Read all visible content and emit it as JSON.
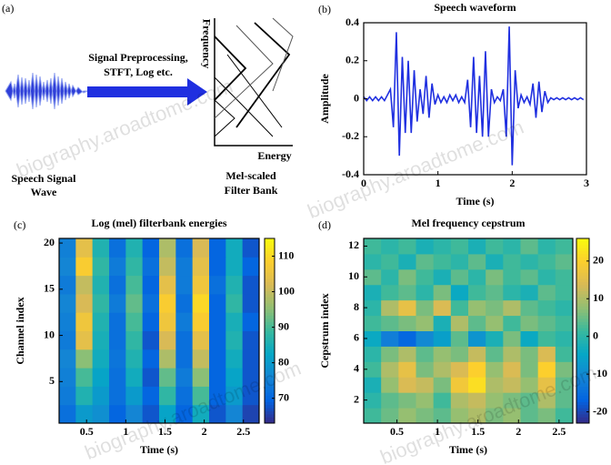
{
  "diagram": {
    "panel_label": "(a)",
    "process_line1": "Signal Preprocessing,",
    "process_line2": "STFT, Log etc.",
    "freq_label": "Frequency",
    "energy_label": "Energy",
    "wave_line1": "Speech Signal",
    "wave_line2": "Wave",
    "bank_line1": "Mel-scaled",
    "bank_line2": "Filter Bank"
  },
  "watermark": "biography.aroadtome.com",
  "chart_data": [
    {
      "type": "line",
      "panel_label": "(b)",
      "title": "Speech waveform",
      "xlabel": "Time (s)",
      "ylabel": "Amplitude",
      "color": "#1f2fe0",
      "x": [
        0,
        0.04,
        0.08,
        0.12,
        0.16,
        0.2,
        0.24,
        0.28,
        0.32,
        0.36,
        0.4,
        0.44,
        0.48,
        0.52,
        0.56,
        0.6,
        0.64,
        0.68,
        0.72,
        0.76,
        0.8,
        0.84,
        0.88,
        0.92,
        0.96,
        1.0,
        1.04,
        1.08,
        1.12,
        1.16,
        1.2,
        1.24,
        1.28,
        1.32,
        1.36,
        1.4,
        1.44,
        1.48,
        1.52,
        1.56,
        1.6,
        1.64,
        1.68,
        1.72,
        1.76,
        1.8,
        1.84,
        1.88,
        1.92,
        1.96,
        2.0,
        2.04,
        2.08,
        2.12,
        2.16,
        2.2,
        2.24,
        2.28,
        2.32,
        2.36,
        2.4,
        2.44,
        2.48,
        2.52,
        2.56,
        2.6,
        2.64,
        2.68,
        2.72,
        2.76,
        2.8,
        2.84,
        2.88,
        2.92,
        2.96
      ],
      "values": [
        0.01,
        -0.01,
        0.01,
        -0.01,
        0.01,
        -0.01,
        0.01,
        -0.01,
        0.02,
        0.05,
        -0.15,
        0.35,
        -0.3,
        0.22,
        -0.18,
        0.2,
        -0.18,
        0.15,
        -0.12,
        0.05,
        -0.08,
        0.12,
        -0.1,
        0.08,
        -0.03,
        0.02,
        -0.02,
        0.01,
        -0.02,
        0.02,
        -0.01,
        0.02,
        -0.02,
        0.01,
        -0.02,
        0.1,
        -0.15,
        0.22,
        -0.18,
        0.12,
        -0.2,
        0.25,
        -0.2,
        0.05,
        -0.02,
        0.01,
        -0.01,
        0.05,
        -0.2,
        0.38,
        -0.35,
        0.15,
        -0.05,
        0.02,
        -0.02,
        0.01,
        -0.03,
        0.08,
        -0.1,
        0.09,
        -0.07,
        0.04,
        -0.02,
        0.005,
        -0.005,
        0.005,
        -0.005,
        0.005,
        -0.005,
        0.005,
        -0.005,
        0.005,
        -0.005,
        0.005,
        -0.005
      ],
      "xlim": [
        0,
        3
      ],
      "xticks": [
        0,
        1,
        2,
        3
      ],
      "ylim": [
        -0.4,
        0.4
      ],
      "yticks": [
        -0.4,
        -0.2,
        0,
        0.2,
        0.4
      ]
    },
    {
      "type": "heatmap",
      "panel_label": "(c)",
      "title": "Log (mel) filterbank energies",
      "xlabel": "Time (s)",
      "ylabel": "Channel index",
      "xbins": [
        0.15,
        0.3625,
        0.575,
        0.7875,
        1.0,
        1.2125,
        1.425,
        1.6375,
        1.85,
        2.0625,
        2.275,
        2.4875,
        2.7
      ],
      "ybins": [
        0.5,
        2.5,
        4.5,
        6.5,
        8.5,
        10.5,
        12.5,
        14.5,
        16.5,
        18.5,
        20.5
      ],
      "z": [
        [
          72,
          80,
          78,
          70,
          76,
          68,
          82,
          70,
          84,
          68,
          76,
          66
        ],
        [
          74,
          86,
          80,
          72,
          80,
          70,
          88,
          72,
          90,
          70,
          80,
          68
        ],
        [
          75,
          90,
          82,
          72,
          84,
          68,
          92,
          74,
          95,
          70,
          82,
          68
        ],
        [
          76,
          95,
          84,
          73,
          86,
          70,
          98,
          72,
          100,
          70,
          84,
          68
        ],
        [
          74,
          104,
          85,
          72,
          88,
          68,
          102,
          72,
          104,
          70,
          86,
          68
        ],
        [
          75,
          106,
          86,
          72,
          90,
          70,
          106,
          74,
          108,
          70,
          85,
          70
        ],
        [
          76,
          102,
          88,
          74,
          92,
          72,
          108,
          72,
          110,
          70,
          88,
          68
        ],
        [
          74,
          100,
          86,
          72,
          90,
          70,
          104,
          74,
          106,
          72,
          86,
          68
        ],
        [
          76,
          108,
          88,
          74,
          88,
          72,
          100,
          74,
          104,
          70,
          84,
          70
        ],
        [
          75,
          104,
          86,
          72,
          86,
          70,
          98,
          72,
          102,
          70,
          84,
          68
        ]
      ],
      "xlim": [
        0.15,
        2.7
      ],
      "xticks": [
        0.5,
        1,
        1.5,
        2,
        2.5
      ],
      "ylim": [
        0.5,
        20.5
      ],
      "yticks": [
        5,
        10,
        15,
        20
      ],
      "clim": [
        63,
        115
      ],
      "cticks": [
        70,
        80,
        90,
        100,
        110
      ],
      "colormap": [
        "#352a87",
        "#0363e1",
        "#1485d4",
        "#06a7c6",
        "#38b99e",
        "#92bf73",
        "#d9ba56",
        "#fcce2e",
        "#f9fb0e"
      ]
    },
    {
      "type": "heatmap",
      "panel_label": "(d)",
      "title": "Mel frequency cepstrum",
      "xlabel": "Time (s)",
      "ylabel": "Cepstrum index",
      "xbins": [
        0.09,
        0.305,
        0.52,
        0.735,
        0.95,
        1.165,
        1.38,
        1.595,
        1.81,
        2.025,
        2.24,
        2.455,
        2.67
      ],
      "ybins": [
        0.5,
        1.5,
        2.5,
        3.5,
        4.5,
        5.5,
        6.5,
        7.5,
        8.5,
        9.5,
        10.5,
        11.5,
        12.5
      ],
      "z": [
        [
          2,
          5,
          8,
          6,
          4,
          8,
          10,
          6,
          8,
          4,
          6,
          2
        ],
        [
          0,
          4,
          6,
          8,
          2,
          10,
          12,
          8,
          6,
          4,
          10,
          4
        ],
        [
          -2,
          8,
          14,
          12,
          6,
          18,
          22,
          10,
          12,
          8,
          16,
          4
        ],
        [
          2,
          10,
          16,
          6,
          10,
          14,
          20,
          8,
          14,
          6,
          20,
          6
        ],
        [
          0,
          6,
          10,
          4,
          8,
          6,
          12,
          4,
          10,
          6,
          14,
          2
        ],
        [
          -4,
          -12,
          -16,
          -10,
          -6,
          4,
          -8,
          -2,
          6,
          -4,
          2,
          0
        ],
        [
          2,
          4,
          6,
          8,
          -2,
          10,
          4,
          8,
          2,
          6,
          4,
          2
        ],
        [
          0,
          10,
          16,
          6,
          14,
          2,
          8,
          6,
          10,
          4,
          2,
          0
        ],
        [
          -2,
          2,
          4,
          0,
          6,
          -4,
          2,
          4,
          0,
          -2,
          4,
          2
        ],
        [
          4,
          0,
          6,
          2,
          -2,
          4,
          0,
          6,
          2,
          4,
          0,
          2
        ],
        [
          0,
          2,
          -2,
          4,
          2,
          0,
          4,
          -2,
          2,
          0,
          2,
          4
        ],
        [
          2,
          0,
          2,
          -2,
          0,
          2,
          -2,
          2,
          0,
          4,
          0,
          2
        ]
      ],
      "xlim": [
        0.09,
        2.67
      ],
      "xticks": [
        0.5,
        1,
        1.5,
        2,
        2.5
      ],
      "ylim": [
        0.5,
        12.5
      ],
      "yticks": [
        2,
        4,
        6,
        8,
        10,
        12
      ],
      "clim": [
        -23,
        26
      ],
      "cticks": [
        -20,
        -10,
        0,
        10,
        20
      ],
      "colormap": [
        "#352a87",
        "#0363e1",
        "#1485d4",
        "#06a7c6",
        "#38b99e",
        "#92bf73",
        "#d9ba56",
        "#fcce2e",
        "#f9fb0e"
      ]
    }
  ]
}
